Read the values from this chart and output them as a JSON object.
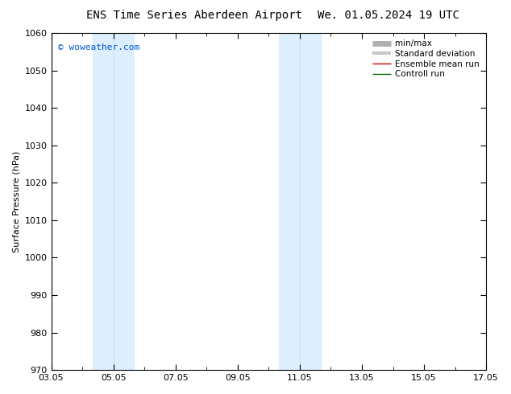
{
  "title_left": "ENS Time Series Aberdeen Airport",
  "title_right": "We. 01.05.2024 19 UTC",
  "ylabel": "Surface Pressure (hPa)",
  "ylim": [
    970,
    1060
  ],
  "yticks": [
    970,
    980,
    990,
    1000,
    1010,
    1020,
    1030,
    1040,
    1050,
    1060
  ],
  "xlim_start": 0,
  "xlim_end": 14,
  "xtick_labels": [
    "03.05",
    "05.05",
    "07.05",
    "09.05",
    "11.05",
    "13.05",
    "15.05",
    "17.05"
  ],
  "xtick_positions": [
    0,
    2,
    4,
    6,
    8,
    10,
    12,
    14
  ],
  "shaded_bands": [
    {
      "xmin": 1.333,
      "xmax": 2.0,
      "color": "#ddeeff"
    },
    {
      "xmin": 2.0,
      "xmax": 2.667,
      "color": "#ddeeff"
    },
    {
      "xmin": 7.333,
      "xmax": 8.0,
      "color": "#ddeeff"
    },
    {
      "xmin": 8.0,
      "xmax": 8.667,
      "color": "#ddeeff"
    }
  ],
  "band_groups": [
    {
      "xmin": 1.333,
      "xmax": 2.667
    },
    {
      "xmin": 7.333,
      "xmax": 8.667
    }
  ],
  "watermark": "© woweather.com",
  "legend_entries": [
    {
      "label": "min/max",
      "color": "#b0b0b0",
      "lw": 5
    },
    {
      "label": "Standard deviation",
      "color": "#c8c8c8",
      "lw": 3
    },
    {
      "label": "Ensemble mean run",
      "color": "#cc0000",
      "lw": 1.0
    },
    {
      "label": "Controll run",
      "color": "#006600",
      "lw": 1.0
    }
  ],
  "bg_color": "#ffffff",
  "plot_bg_color": "#ffffff",
  "title_fontsize": 10,
  "axis_fontsize": 8,
  "tick_fontsize": 8,
  "watermark_color": "#0055cc",
  "watermark_fontsize": 8,
  "legend_fontsize": 7.5
}
